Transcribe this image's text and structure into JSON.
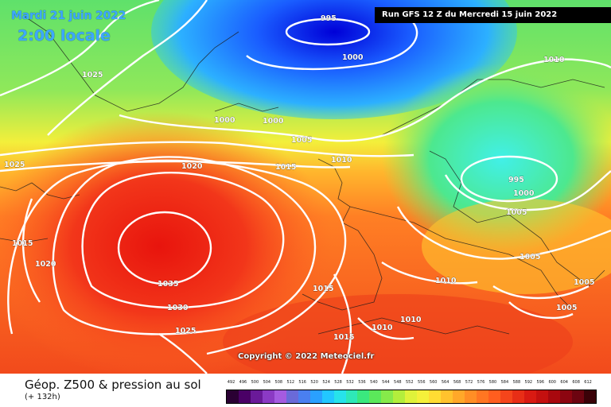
{
  "header": {
    "date": "Mardi 21 juin 2022",
    "time": "2:00 locale",
    "run": "Run GFS 12 Z du Mercredi 15 juin 2022"
  },
  "footer": {
    "copyright": "Copyright © 2022 Meteociel.fr"
  },
  "legend": {
    "title": "Géop. Z500 & pression au sol",
    "lead_time": "(+ 132h)",
    "scale_values": [
      "492",
      "496",
      "500",
      "504",
      "508",
      "512",
      "516",
      "520",
      "524",
      "528",
      "532",
      "536",
      "540",
      "544",
      "548",
      "552",
      "556",
      "560",
      "564",
      "568",
      "572",
      "576",
      "580",
      "584",
      "588",
      "592",
      "596",
      "600",
      "604",
      "608",
      "612"
    ],
    "scale_colors": [
      "#2a0033",
      "#4a0066",
      "#6a1a99",
      "#8b3ac4",
      "#a55be0",
      "#6a6ad8",
      "#4a7ff0",
      "#2aa0ff",
      "#22c7ff",
      "#27e3ea",
      "#2ee8b8",
      "#3ae87e",
      "#5be85a",
      "#86ea4a",
      "#b3ee3c",
      "#dff23a",
      "#f5f03a",
      "#ffdc33",
      "#ffc22d",
      "#ffa829",
      "#ff8e25",
      "#ff7622",
      "#ff5e1f",
      "#f5451b",
      "#e82e16",
      "#d91a12",
      "#c4100f",
      "#a8080e",
      "#8c0510",
      "#6c0410",
      "#3a0208"
    ]
  },
  "map": {
    "isobars": [
      "995",
      "1000",
      "1010",
      "1025",
      "1000",
      "1000",
      "1005",
      "1025",
      "1020",
      "1015",
      "1010",
      "995",
      "1000",
      "1005",
      "1015",
      "1005",
      "1020",
      "1010",
      "1005",
      "1035",
      "1015",
      "1005",
      "1030",
      "1010",
      "1010",
      "1025",
      "1015"
    ]
  }
}
